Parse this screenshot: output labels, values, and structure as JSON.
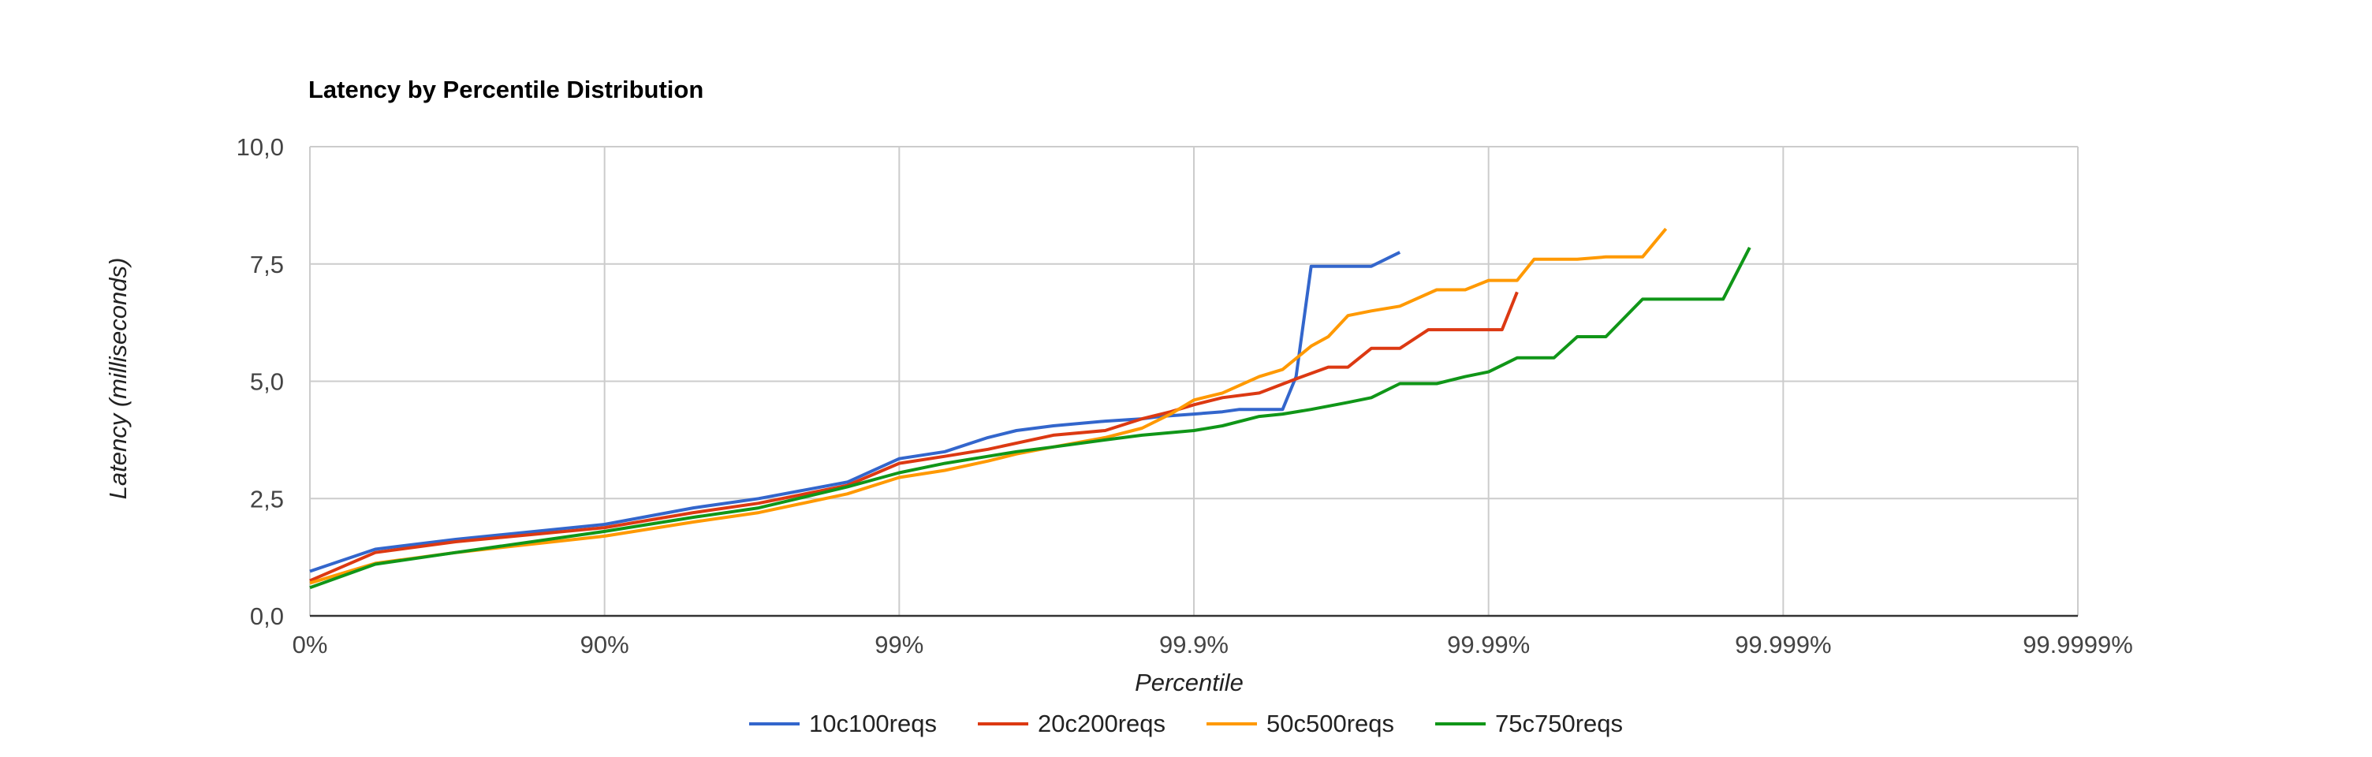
{
  "chart_data": {
    "type": "line",
    "title": "Latency by Percentile Distribution",
    "xlabel": "Percentile",
    "ylabel": "Latency (milliseconds)",
    "x_scale": "log-percentile (1/(1-p))",
    "x_ticks": [
      "0%",
      "90%",
      "99%",
      "99.9%",
      "99.99%",
      "99.999%",
      "99.9999%"
    ],
    "y_ticks": [
      "0,0",
      "2,5",
      "5,0",
      "7,5",
      "10,0"
    ],
    "ylim": [
      0,
      10
    ],
    "grid": true,
    "legend_position": "bottom",
    "series": [
      {
        "name": "10c100reqs",
        "color": "#3366cc",
        "points": [
          [
            0,
            0.95
          ],
          [
            40,
            1.42
          ],
          [
            68,
            1.63
          ],
          [
            90,
            1.95
          ],
          [
            95,
            2.3
          ],
          [
            97,
            2.5
          ],
          [
            98.5,
            2.85
          ],
          [
            99,
            3.35
          ],
          [
            99.3,
            3.5
          ],
          [
            99.5,
            3.8
          ],
          [
            99.6,
            3.95
          ],
          [
            99.7,
            4.05
          ],
          [
            99.8,
            4.15
          ],
          [
            99.85,
            4.2
          ],
          [
            99.87,
            4.25
          ],
          [
            99.9,
            4.3
          ],
          [
            99.92,
            4.35
          ],
          [
            99.93,
            4.4
          ],
          [
            99.95,
            4.4
          ],
          [
            99.955,
            5.1
          ],
          [
            99.96,
            7.45
          ],
          [
            99.97,
            7.45
          ],
          [
            99.975,
            7.45
          ],
          [
            99.98,
            7.75
          ]
        ]
      },
      {
        "name": "20c200reqs",
        "color": "#dc3912",
        "points": [
          [
            0,
            0.75
          ],
          [
            40,
            1.35
          ],
          [
            68,
            1.58
          ],
          [
            90,
            1.88
          ],
          [
            95,
            2.2
          ],
          [
            97,
            2.4
          ],
          [
            98.5,
            2.78
          ],
          [
            99,
            3.25
          ],
          [
            99.3,
            3.4
          ],
          [
            99.5,
            3.55
          ],
          [
            99.7,
            3.85
          ],
          [
            99.8,
            3.95
          ],
          [
            99.85,
            4.2
          ],
          [
            99.88,
            4.35
          ],
          [
            99.9,
            4.5
          ],
          [
            99.92,
            4.65
          ],
          [
            99.94,
            4.75
          ],
          [
            99.955,
            5.05
          ],
          [
            99.965,
            5.3
          ],
          [
            99.97,
            5.3
          ],
          [
            99.975,
            5.7
          ],
          [
            99.98,
            5.7
          ],
          [
            99.984,
            6.1
          ],
          [
            99.99,
            6.1
          ],
          [
            99.991,
            6.1
          ],
          [
            99.992,
            6.9
          ]
        ]
      },
      {
        "name": "50c500reqs",
        "color": "#ff9900",
        "points": [
          [
            0,
            0.7
          ],
          [
            40,
            1.12
          ],
          [
            68,
            1.35
          ],
          [
            90,
            1.7
          ],
          [
            95,
            2.0
          ],
          [
            97,
            2.2
          ],
          [
            98.5,
            2.6
          ],
          [
            99,
            2.95
          ],
          [
            99.3,
            3.1
          ],
          [
            99.5,
            3.3
          ],
          [
            99.6,
            3.45
          ],
          [
            99.7,
            3.6
          ],
          [
            99.8,
            3.8
          ],
          [
            99.85,
            4.0
          ],
          [
            99.88,
            4.3
          ],
          [
            99.9,
            4.6
          ],
          [
            99.92,
            4.75
          ],
          [
            99.94,
            5.1
          ],
          [
            99.95,
            5.25
          ],
          [
            99.96,
            5.75
          ],
          [
            99.965,
            5.95
          ],
          [
            99.97,
            6.4
          ],
          [
            99.975,
            6.5
          ],
          [
            99.98,
            6.6
          ],
          [
            99.985,
            6.95
          ],
          [
            99.988,
            6.95
          ],
          [
            99.99,
            7.15
          ],
          [
            99.992,
            7.15
          ],
          [
            99.993,
            7.6
          ],
          [
            99.995,
            7.6
          ],
          [
            99.996,
            7.65
          ],
          [
            99.997,
            7.65
          ],
          [
            99.9975,
            8.25
          ]
        ]
      },
      {
        "name": "75c750reqs",
        "color": "#109618",
        "points": [
          [
            0,
            0.6
          ],
          [
            40,
            1.1
          ],
          [
            68,
            1.35
          ],
          [
            90,
            1.8
          ],
          [
            95,
            2.1
          ],
          [
            97,
            2.3
          ],
          [
            98.5,
            2.75
          ],
          [
            99,
            3.05
          ],
          [
            99.3,
            3.25
          ],
          [
            99.5,
            3.4
          ],
          [
            99.6,
            3.5
          ],
          [
            99.7,
            3.6
          ],
          [
            99.8,
            3.75
          ],
          [
            99.85,
            3.85
          ],
          [
            99.9,
            3.95
          ],
          [
            99.92,
            4.05
          ],
          [
            99.94,
            4.25
          ],
          [
            99.95,
            4.3
          ],
          [
            99.96,
            4.4
          ],
          [
            99.97,
            4.55
          ],
          [
            99.975,
            4.65
          ],
          [
            99.98,
            4.95
          ],
          [
            99.985,
            4.95
          ],
          [
            99.988,
            5.1
          ],
          [
            99.99,
            5.2
          ],
          [
            99.992,
            5.5
          ],
          [
            99.994,
            5.5
          ],
          [
            99.995,
            5.95
          ],
          [
            99.996,
            5.95
          ],
          [
            99.997,
            6.75
          ],
          [
            99.998,
            6.75
          ],
          [
            99.9984,
            6.75
          ],
          [
            99.9987,
            7.85
          ]
        ]
      }
    ]
  }
}
